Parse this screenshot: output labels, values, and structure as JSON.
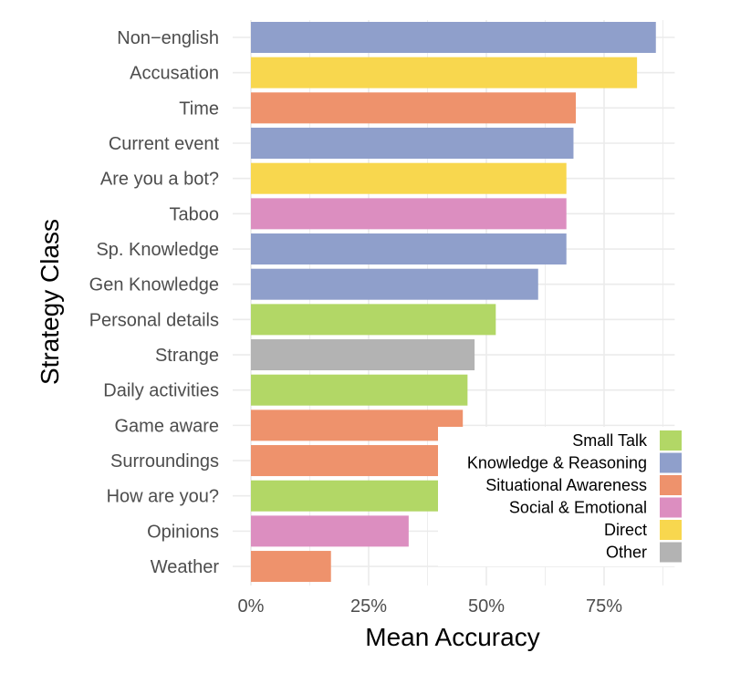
{
  "chart_data": {
    "type": "bar",
    "orientation": "horizontal",
    "xlabel": "Mean Accuracy",
    "ylabel": "Strategy Class",
    "xlim": [
      0,
      0.9
    ],
    "xticks": [
      0,
      0.25,
      0.5,
      0.75
    ],
    "xtick_labels": [
      "0%",
      "25%",
      "50%",
      "75%"
    ],
    "grid": true,
    "legend_position": "bottom-right",
    "categories": [
      "Non−english",
      "Accusation",
      "Time",
      "Current event",
      "Are you a bot?",
      "Taboo",
      "Sp. Knowledge",
      "Gen Knowledge",
      "Personal details",
      "Strange",
      "Daily activities",
      "Game aware",
      "Surroundings",
      "How are you?",
      "Opinions",
      "Weather"
    ],
    "values": [
      0.86,
      0.82,
      0.69,
      0.685,
      0.67,
      0.67,
      0.67,
      0.61,
      0.52,
      0.475,
      0.46,
      0.45,
      0.4,
      0.4,
      0.335,
      0.17
    ],
    "groups": [
      "Knowledge & Reasoning",
      "Direct",
      "Situational Awareness",
      "Knowledge & Reasoning",
      "Direct",
      "Social & Emotional",
      "Knowledge & Reasoning",
      "Knowledge & Reasoning",
      "Small Talk",
      "Other",
      "Small Talk",
      "Situational Awareness",
      "Situational Awareness",
      "Small Talk",
      "Social & Emotional",
      "Situational Awareness"
    ],
    "legend": [
      {
        "name": "Small Talk",
        "color": "#b2d766"
      },
      {
        "name": "Knowledge & Reasoning",
        "color": "#8f9fcb"
      },
      {
        "name": "Situational Awareness",
        "color": "#ee926c"
      },
      {
        "name": "Social & Emotional",
        "color": "#dc8ec0"
      },
      {
        "name": "Direct",
        "color": "#f8d74e"
      },
      {
        "name": "Other",
        "color": "#b3b3b3"
      }
    ]
  }
}
